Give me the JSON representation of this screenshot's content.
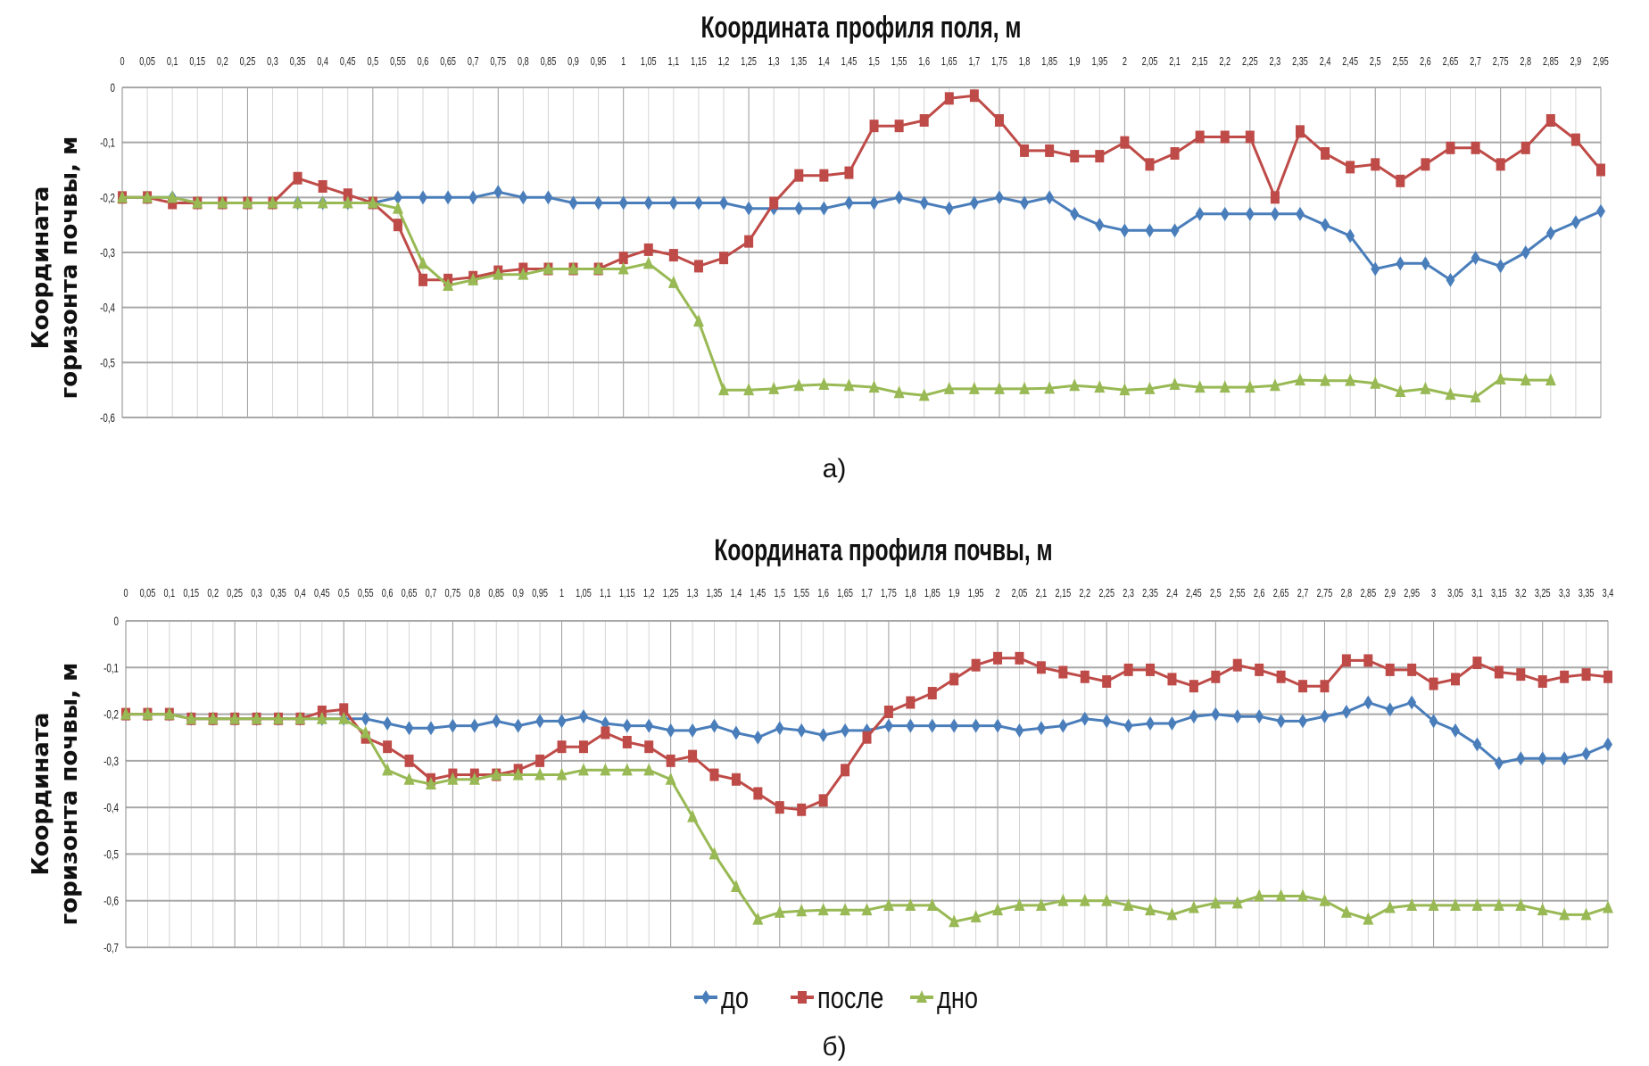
{
  "colors": {
    "do": "#4a7ebb",
    "posle": "#be4b48",
    "dno": "#98b954",
    "grid": "#b8b8b8"
  },
  "legend": [
    "до",
    "после",
    "дно"
  ],
  "chart_data": [
    {
      "type": "line",
      "caption": "а)",
      "title": "Координата профиля поля, м",
      "xlabel": "",
      "ylabel_lines": [
        "Координата",
        "горизонта почвы, м"
      ],
      "ylim": [
        -0.6,
        0
      ],
      "yticks": [
        0,
        -0.1,
        -0.2,
        -0.3,
        -0.4,
        -0.5,
        -0.6
      ],
      "ytick_labels": [
        "0",
        "-0,1",
        "-0,2",
        "-0,3",
        "-0,4",
        "-0,5",
        "-0,6"
      ],
      "grid": true,
      "x_position": "top",
      "categories": [
        "0",
        "0,05",
        "0,1",
        "0,15",
        "0,2",
        "0,25",
        "0,3",
        "0,35",
        "0,4",
        "0,45",
        "0,5",
        "0,55",
        "0,6",
        "0,65",
        "0,7",
        "0,75",
        "0,8",
        "0,85",
        "0,9",
        "0,95",
        "1",
        "1,05",
        "1,1",
        "1,15",
        "1,2",
        "1,25",
        "1,3",
        "1,35",
        "1,4",
        "1,45",
        "1,5",
        "1,55",
        "1,6",
        "1,65",
        "1,7",
        "1,75",
        "1,8",
        "1,85",
        "1,9",
        "1,95",
        "2",
        "2,05",
        "2,1",
        "2,15",
        "2,2",
        "2,25",
        "2,3",
        "2,35",
        "2,4",
        "2,45",
        "2,5",
        "2,55",
        "2,6",
        "2,65",
        "2,7",
        "2,75",
        "2,8",
        "2,85",
        "2,9",
        "2,95"
      ],
      "series": [
        {
          "name": "до",
          "marker": "diamond",
          "values": [
            -0.2,
            -0.2,
            -0.2,
            -0.21,
            -0.21,
            -0.21,
            -0.21,
            -0.21,
            -0.21,
            -0.21,
            -0.21,
            -0.2,
            -0.2,
            -0.2,
            -0.2,
            -0.19,
            -0.2,
            -0.2,
            -0.21,
            -0.21,
            -0.21,
            -0.21,
            -0.21,
            -0.21,
            -0.21,
            -0.22,
            -0.22,
            -0.22,
            -0.22,
            -0.21,
            -0.21,
            -0.2,
            -0.21,
            -0.22,
            -0.21,
            -0.2,
            -0.21,
            -0.2,
            -0.23,
            -0.25,
            -0.26,
            -0.26,
            -0.26,
            -0.23,
            -0.23,
            -0.23,
            -0.23,
            -0.23,
            -0.25,
            -0.27,
            -0.33,
            -0.32,
            -0.32,
            -0.35,
            -0.31,
            -0.325,
            -0.3,
            -0.265,
            -0.245,
            -0.225
          ]
        },
        {
          "name": "после",
          "marker": "square",
          "values": [
            -0.2,
            -0.2,
            -0.21,
            -0.21,
            -0.21,
            -0.21,
            -0.21,
            -0.165,
            -0.18,
            -0.195,
            -0.21,
            -0.25,
            -0.35,
            -0.35,
            -0.345,
            -0.335,
            -0.33,
            -0.33,
            -0.33,
            -0.33,
            -0.31,
            -0.295,
            -0.305,
            -0.325,
            -0.31,
            -0.28,
            -0.21,
            -0.16,
            -0.16,
            -0.155,
            -0.07,
            -0.07,
            -0.06,
            -0.02,
            -0.015,
            -0.06,
            -0.115,
            -0.115,
            -0.125,
            -0.125,
            -0.1,
            -0.14,
            -0.12,
            -0.09,
            -0.09,
            -0.09,
            -0.2,
            -0.08,
            -0.12,
            -0.145,
            -0.14,
            -0.17,
            -0.14,
            -0.11,
            -0.11,
            -0.14,
            -0.11,
            -0.06,
            -0.095,
            -0.15
          ]
        },
        {
          "name": "дно",
          "marker": "triangle",
          "values": [
            -0.2,
            -0.2,
            -0.2,
            -0.21,
            -0.21,
            -0.21,
            -0.21,
            -0.21,
            -0.21,
            -0.21,
            -0.21,
            -0.22,
            -0.32,
            -0.36,
            -0.35,
            -0.34,
            -0.34,
            -0.33,
            -0.33,
            -0.33,
            -0.33,
            -0.32,
            -0.355,
            -0.425,
            -0.55,
            -0.55,
            -0.548,
            -0.542,
            -0.54,
            -0.542,
            -0.545,
            -0.555,
            -0.56,
            -0.548,
            -0.548,
            -0.548,
            -0.548,
            -0.547,
            -0.542,
            -0.545,
            -0.55,
            -0.548,
            -0.54,
            -0.545,
            -0.545,
            -0.545,
            -0.542,
            -0.532,
            -0.533,
            -0.533,
            -0.538,
            -0.553,
            -0.548,
            -0.558,
            -0.563,
            -0.53,
            -0.532,
            -0.532,
            null,
            null
          ]
        }
      ]
    },
    {
      "type": "line",
      "caption": "б)",
      "title": "Координата профиля почвы, м",
      "xlabel": "",
      "ylabel_lines": [
        "Координата",
        "горизонта почвы, м"
      ],
      "ylim": [
        -0.7,
        0
      ],
      "yticks": [
        0,
        -0.1,
        -0.2,
        -0.3,
        -0.4,
        -0.5,
        -0.6,
        -0.7
      ],
      "ytick_labels": [
        "0",
        "-0,1",
        "-0,2",
        "-0,3",
        "-0,4",
        "-0,5",
        "-0,6",
        "-0,7"
      ],
      "grid": true,
      "x_position": "top",
      "legend_position": "bottom",
      "categories": [
        "0",
        "0,05",
        "0,1",
        "0,15",
        "0,2",
        "0,25",
        "0,3",
        "0,35",
        "0,4",
        "0,45",
        "0,5",
        "0,55",
        "0,6",
        "0,65",
        "0,7",
        "0,75",
        "0,8",
        "0,85",
        "0,9",
        "0,95",
        "1",
        "1,05",
        "1,1",
        "1,15",
        "1,2",
        "1,25",
        "1,3",
        "1,35",
        "1,4",
        "1,45",
        "1,5",
        "1,55",
        "1,6",
        "1,65",
        "1,7",
        "1,75",
        "1,8",
        "1,85",
        "1,9",
        "1,95",
        "2",
        "2,05",
        "2,1",
        "2,15",
        "2,2",
        "2,25",
        "2,3",
        "2,35",
        "2,4",
        "2,45",
        "2,5",
        "2,55",
        "2,6",
        "2,65",
        "2,7",
        "2,75",
        "2,8",
        "2,85",
        "2,9",
        "2,95",
        "3",
        "3,05",
        "3,1",
        "3,15",
        "3,2",
        "3,25",
        "3,3",
        "3,35",
        "3,4"
      ],
      "series": [
        {
          "name": "до",
          "marker": "diamond",
          "values": [
            -0.2,
            -0.2,
            -0.2,
            -0.21,
            -0.21,
            -0.21,
            -0.21,
            -0.21,
            -0.21,
            -0.21,
            -0.21,
            -0.21,
            -0.22,
            -0.23,
            -0.23,
            -0.225,
            -0.225,
            -0.215,
            -0.225,
            -0.215,
            -0.215,
            -0.205,
            -0.22,
            -0.225,
            -0.225,
            -0.235,
            -0.235,
            -0.225,
            -0.24,
            -0.25,
            -0.23,
            -0.235,
            -0.245,
            -0.235,
            -0.235,
            -0.225,
            -0.225,
            -0.225,
            -0.225,
            -0.225,
            -0.225,
            -0.235,
            -0.23,
            -0.225,
            -0.21,
            -0.215,
            -0.225,
            -0.22,
            -0.22,
            -0.205,
            -0.2,
            -0.205,
            -0.205,
            -0.215,
            -0.215,
            -0.205,
            -0.195,
            -0.175,
            -0.19,
            -0.175,
            -0.215,
            -0.235,
            -0.265,
            -0.305,
            -0.295,
            -0.295,
            -0.295,
            -0.285,
            -0.265
          ]
        },
        {
          "name": "после",
          "marker": "square",
          "values": [
            -0.2,
            -0.2,
            -0.2,
            -0.21,
            -0.21,
            -0.21,
            -0.21,
            -0.21,
            -0.21,
            -0.195,
            -0.19,
            -0.25,
            -0.27,
            -0.3,
            -0.34,
            -0.33,
            -0.33,
            -0.33,
            -0.32,
            -0.3,
            -0.27,
            -0.27,
            -0.24,
            -0.26,
            -0.27,
            -0.3,
            -0.29,
            -0.33,
            -0.34,
            -0.37,
            -0.4,
            -0.405,
            -0.385,
            -0.32,
            -0.25,
            -0.195,
            -0.175,
            -0.155,
            -0.125,
            -0.095,
            -0.08,
            -0.08,
            -0.1,
            -0.11,
            -0.12,
            -0.13,
            -0.105,
            -0.105,
            -0.125,
            -0.14,
            -0.12,
            -0.095,
            -0.105,
            -0.12,
            -0.14,
            -0.14,
            -0.085,
            -0.085,
            -0.105,
            -0.105,
            -0.135,
            -0.125,
            -0.09,
            -0.11,
            -0.115,
            -0.13,
            -0.12,
            -0.115,
            -0.12
          ]
        },
        {
          "name": "дно",
          "marker": "triangle",
          "values": [
            -0.2,
            -0.2,
            -0.2,
            -0.21,
            -0.21,
            -0.21,
            -0.21,
            -0.21,
            -0.21,
            -0.21,
            -0.21,
            -0.24,
            -0.32,
            -0.34,
            -0.35,
            -0.34,
            -0.34,
            -0.33,
            -0.33,
            -0.33,
            -0.33,
            -0.32,
            -0.32,
            -0.32,
            -0.32,
            -0.34,
            -0.42,
            -0.5,
            -0.57,
            -0.64,
            -0.625,
            -0.622,
            -0.62,
            -0.62,
            -0.62,
            -0.61,
            -0.61,
            -0.61,
            -0.645,
            -0.635,
            -0.62,
            -0.61,
            -0.61,
            -0.6,
            -0.6,
            -0.6,
            -0.61,
            -0.62,
            -0.63,
            -0.615,
            -0.605,
            -0.605,
            -0.59,
            -0.59,
            -0.59,
            -0.6,
            -0.625,
            -0.64,
            -0.615,
            -0.61,
            -0.61,
            -0.61,
            -0.61,
            -0.61,
            -0.61,
            -0.62,
            -0.63,
            -0.63,
            -0.615
          ]
        }
      ]
    }
  ]
}
